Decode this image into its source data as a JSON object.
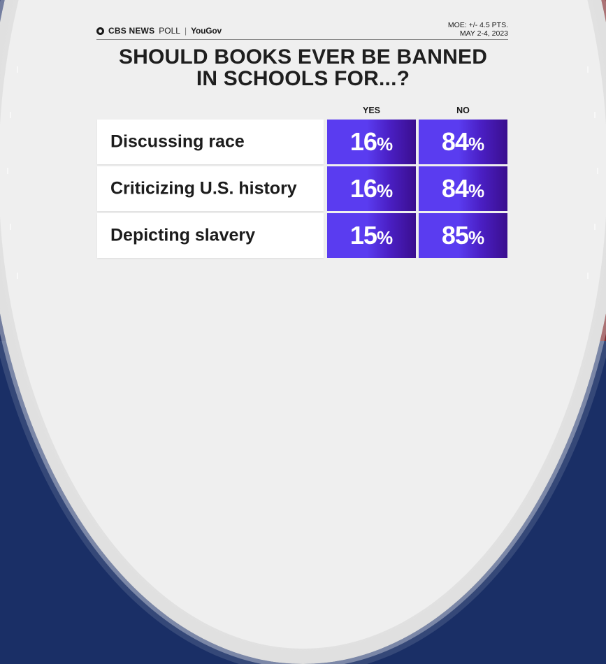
{
  "header": {
    "logo_cbs": "CBS NEWS",
    "logo_poll": "POLL",
    "logo_sep": "|",
    "logo_partner": "YouGov",
    "moe_line1": "MOE: +/- 4.5 PTS.",
    "moe_line2": "MAY 2-4, 2023"
  },
  "title_line1": "SHOULD BOOKS EVER BE BANNED",
  "title_line2": "IN SCHOOLS FOR...?",
  "colors": {
    "cell": "#5a3cf0",
    "cell_dark": "#3a0e8e",
    "left_frame": "#1f3f95",
    "right_frame": "#b51c22"
  },
  "chart_data": {
    "type": "table",
    "title": "SHOULD BOOKS EVER BE BANNED IN SCHOOLS FOR...?",
    "columns": [
      "YES",
      "NO"
    ],
    "unit": "%",
    "rows": [
      {
        "label": "Discussing race",
        "values": [
          16,
          84
        ]
      },
      {
        "label": "Criticizing U.S. history",
        "values": [
          16,
          84
        ]
      },
      {
        "label": "Depicting slavery",
        "values": [
          15,
          85
        ]
      }
    ]
  }
}
